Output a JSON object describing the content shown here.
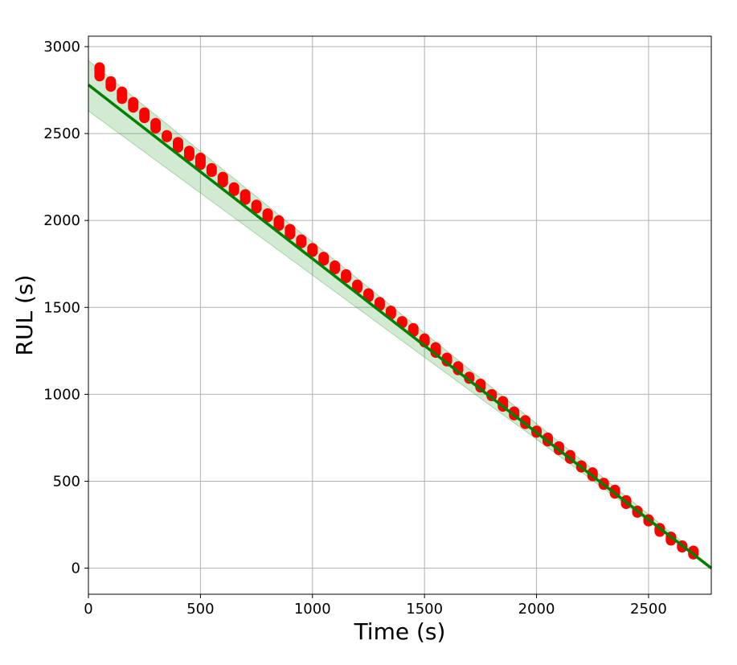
{
  "chart_data": {
    "type": "scatter",
    "xlabel": "Time (s)",
    "ylabel": "RUL (s)",
    "xlim": [
      0,
      2780
    ],
    "ylim": [
      -150,
      3060
    ],
    "xticks": [
      0,
      500,
      1000,
      1500,
      2000,
      2500
    ],
    "yticks": [
      0,
      500,
      1000,
      1500,
      2000,
      2500,
      3000
    ],
    "grid": true,
    "line": {
      "color": "#008000",
      "x": [
        0,
        2780
      ],
      "y": [
        2780,
        0
      ]
    },
    "band": {
      "color": "#2ca02c",
      "x": [
        0,
        2700
      ],
      "upper": [
        2920,
        100
      ],
      "lower": [
        2630,
        80
      ]
    },
    "points": {
      "color": "#ff0000",
      "x": [
        50,
        100,
        150,
        200,
        250,
        300,
        350,
        400,
        450,
        500,
        550,
        600,
        650,
        700,
        750,
        800,
        850,
        900,
        950,
        1000,
        1050,
        1100,
        1150,
        1200,
        1250,
        1300,
        1350,
        1400,
        1450,
        1500,
        1550,
        1600,
        1650,
        1700,
        1750,
        1800,
        1850,
        1900,
        1950,
        2000,
        2050,
        2100,
        2150,
        2200,
        2250,
        2300,
        2350,
        2400,
        2450,
        2500,
        2550,
        2600,
        2650,
        2700
      ],
      "y_min": [
        2830,
        2770,
        2700,
        2650,
        2590,
        2530,
        2480,
        2420,
        2370,
        2320,
        2280,
        2220,
        2170,
        2120,
        2070,
        2020,
        1970,
        1920,
        1870,
        1820,
        1770,
        1720,
        1670,
        1610,
        1560,
        1510,
        1460,
        1410,
        1360,
        1300,
        1240,
        1190,
        1140,
        1090,
        1040,
        990,
        930,
        880,
        830,
        780,
        730,
        680,
        630,
        580,
        530,
        480,
        430,
        370,
        320,
        270,
        210,
        160,
        120,
        80
      ],
      "y_max": [
        2880,
        2800,
        2740,
        2680,
        2620,
        2560,
        2490,
        2450,
        2400,
        2360,
        2300,
        2250,
        2190,
        2150,
        2090,
        2040,
        2000,
        1950,
        1890,
        1840,
        1790,
        1740,
        1690,
        1630,
        1580,
        1530,
        1480,
        1420,
        1380,
        1320,
        1270,
        1210,
        1160,
        1100,
        1060,
        1000,
        960,
        900,
        850,
        790,
        750,
        700,
        650,
        590,
        550,
        490,
        450,
        390,
        330,
        280,
        230,
        180,
        130,
        100
      ]
    }
  }
}
